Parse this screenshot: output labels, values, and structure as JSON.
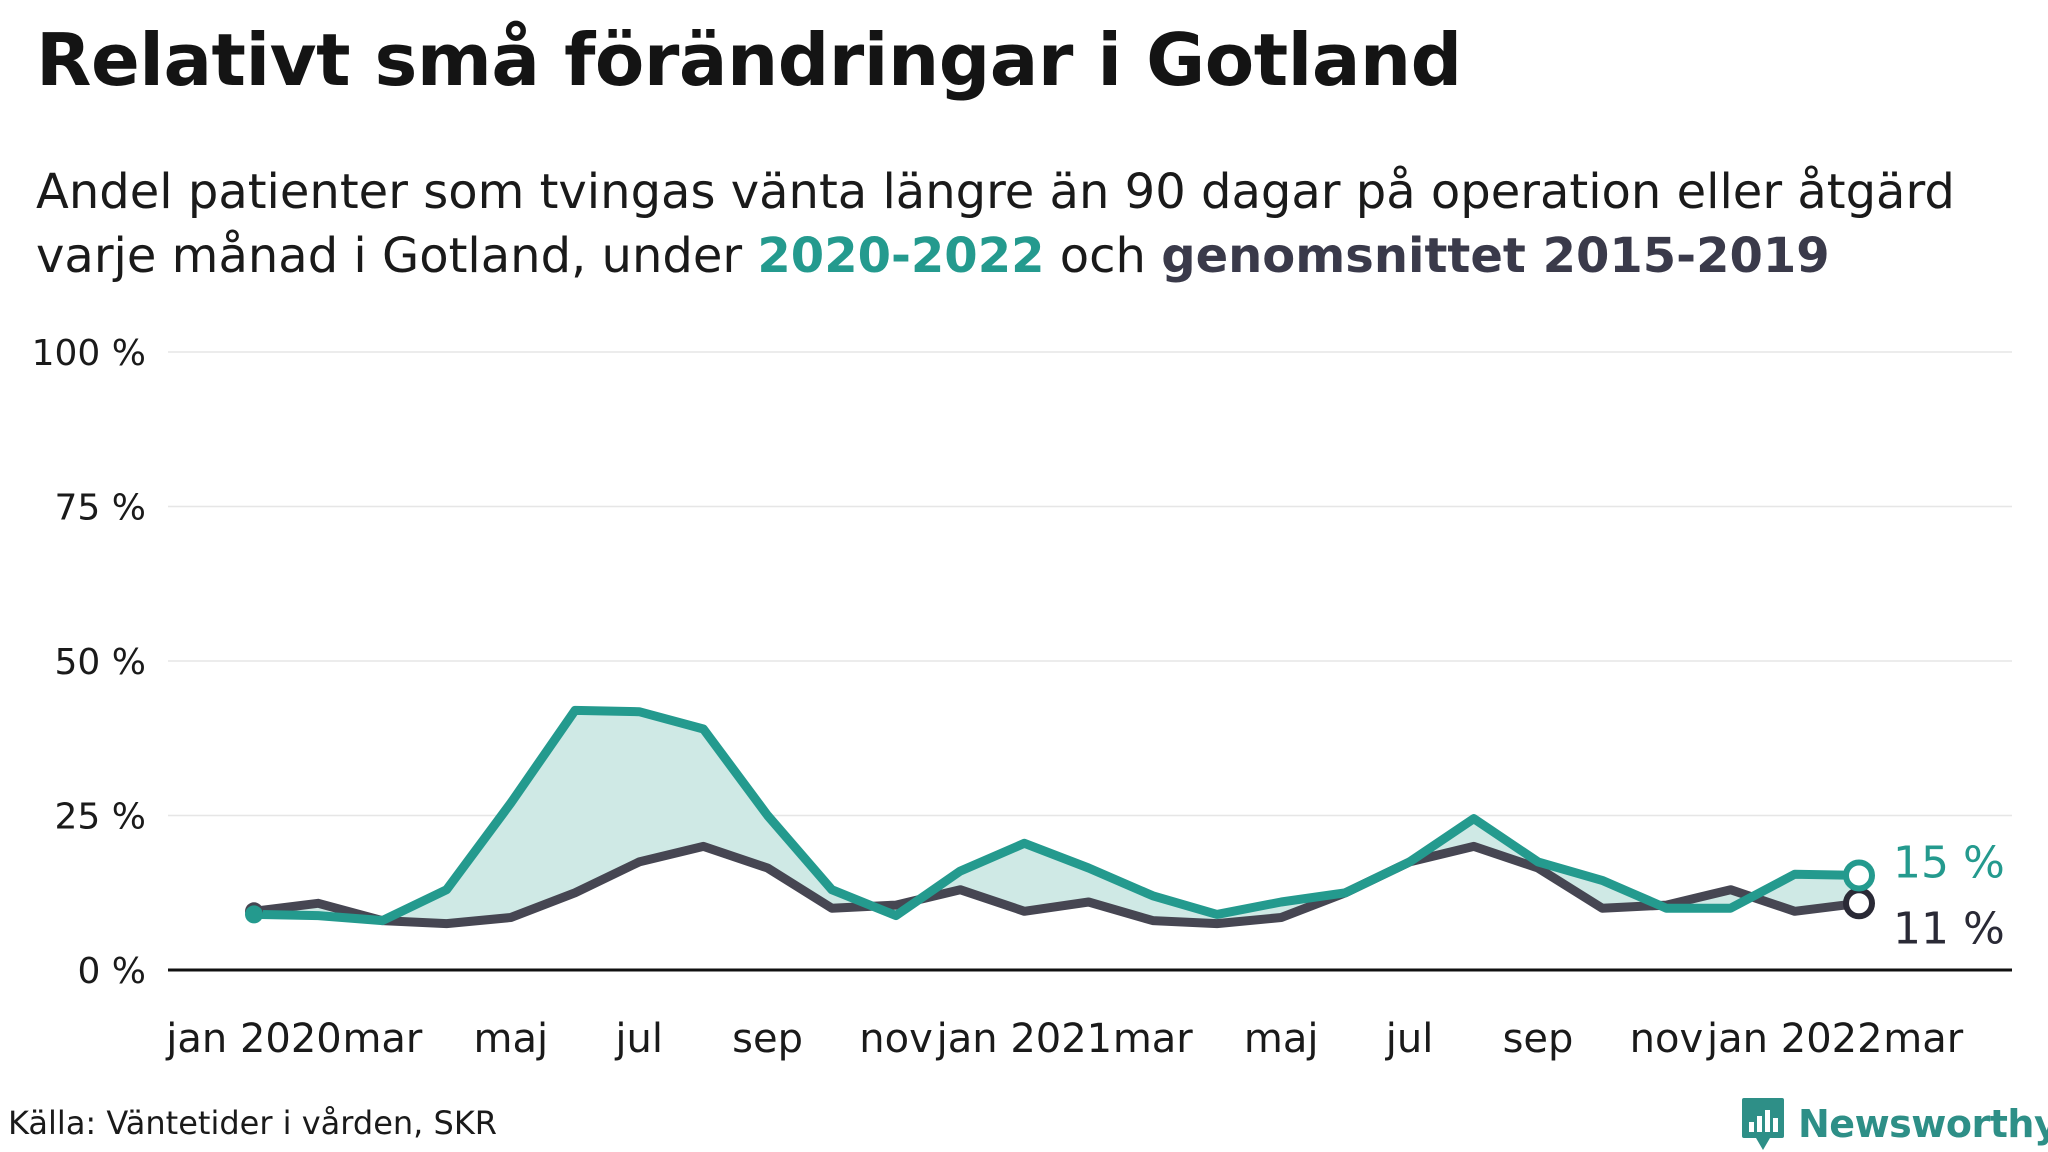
{
  "header": {
    "title": "Relativt små förändringar i Gotland",
    "subtitle_line1": "Andel patienter som tvingas vänta längre än 90 dagar på operation eller åtgärd",
    "subtitle_line2_prefix": "varje månad i Gotland, under ",
    "subtitle_highlight_current": "2020-2022",
    "subtitle_between": " och ",
    "subtitle_highlight_average": "genomsnittet 2015-2019"
  },
  "footer": {
    "source": "Källa: Väntetider i vården, SKR",
    "brand": "Newsworthy"
  },
  "colors": {
    "current": "#249a8e",
    "average": "#464652",
    "fill": "#cfe9e5",
    "grid": "#e6e6e6",
    "baseline": "#111111"
  },
  "chart_data": {
    "type": "line",
    "x": [
      "2020-01",
      "2020-02",
      "2020-03",
      "2020-04",
      "2020-05",
      "2020-06",
      "2020-07",
      "2020-08",
      "2020-09",
      "2020-10",
      "2020-11",
      "2020-12",
      "2021-01",
      "2021-02",
      "2021-03",
      "2021-04",
      "2021-05",
      "2021-06",
      "2021-07",
      "2021-08",
      "2021-09",
      "2021-10",
      "2021-11",
      "2021-12",
      "2022-01",
      "2022-02"
    ],
    "x_tick_labels": [
      {
        "index": 0,
        "label": "jan 2020"
      },
      {
        "index": 2,
        "label": "mar"
      },
      {
        "index": 4,
        "label": "maj"
      },
      {
        "index": 6,
        "label": "jul"
      },
      {
        "index": 8,
        "label": "sep"
      },
      {
        "index": 10,
        "label": "nov"
      },
      {
        "index": 12,
        "label": "jan 2021"
      },
      {
        "index": 14,
        "label": "mar"
      },
      {
        "index": 16,
        "label": "maj"
      },
      {
        "index": 18,
        "label": "jul"
      },
      {
        "index": 20,
        "label": "sep"
      },
      {
        "index": 22,
        "label": "nov"
      },
      {
        "index": 24,
        "label": "jan 2022"
      },
      {
        "index": 26,
        "label": "mar"
      }
    ],
    "y_ticks": [
      {
        "value": 0,
        "label": "0 %"
      },
      {
        "value": 25,
        "label": "25 %"
      },
      {
        "value": 50,
        "label": "50 %"
      },
      {
        "value": 75,
        "label": "75 %"
      },
      {
        "value": 100,
        "label": "100 %"
      }
    ],
    "ylim": [
      0,
      100
    ],
    "xlim_index": [
      0,
      27
    ],
    "grid": true,
    "series": [
      {
        "key": "current",
        "values": [
          9,
          8.8,
          8,
          13,
          27,
          42,
          41.8,
          39,
          25,
          13,
          8.8,
          16,
          20.5,
          16.5,
          12,
          9,
          11,
          12.5,
          17.5,
          24.5,
          17.5,
          14.5,
          10,
          10,
          15.5,
          15.3
        ],
        "end_label": "15 %"
      },
      {
        "key": "average",
        "values": [
          9.5,
          10.8,
          8,
          7.5,
          8.5,
          12.5,
          17.5,
          20,
          16.5,
          10,
          10.5,
          13,
          9.5,
          11,
          8,
          7.5,
          8.5,
          12.5,
          17.5,
          20,
          16.5,
          10,
          10.5,
          13,
          9.5,
          10.8
        ],
        "end_label": "11 %"
      }
    ]
  }
}
